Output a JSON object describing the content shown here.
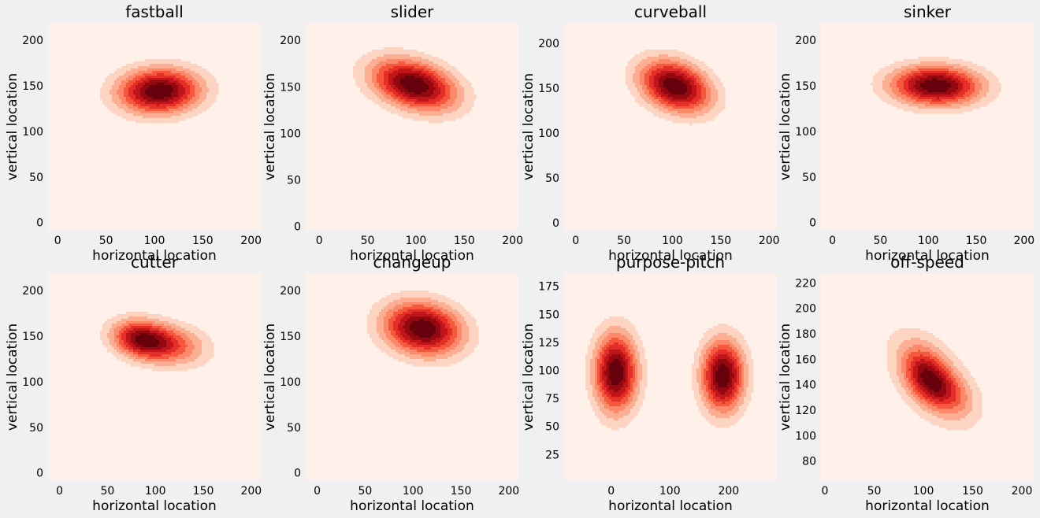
{
  "figure": {
    "background": "#f0f0f0",
    "plot_background": "#fff0e9"
  },
  "chart_data": [
    {
      "type": "contour",
      "title": "fastball",
      "xlabel": "horizontal location",
      "ylabel": "vertical location",
      "xlim": [
        -10,
        210
      ],
      "ylim": [
        -8,
        218
      ],
      "xticks": [
        0,
        50,
        100,
        150,
        200
      ],
      "yticks": [
        0,
        50,
        100,
        150,
        200
      ],
      "grid": false,
      "density": [
        {
          "x": 105,
          "y": 144,
          "sx": 29,
          "sy": 17,
          "rho": 0.05,
          "w": 1
        }
      ]
    },
    {
      "type": "contour",
      "title": "slider",
      "xlabel": "horizontal location",
      "ylabel": "vertical location",
      "xlim": [
        -14,
        206
      ],
      "ylim": [
        -4,
        218
      ],
      "xticks": [
        0,
        50,
        100,
        150,
        200
      ],
      "yticks": [
        0,
        50,
        100,
        150,
        200
      ],
      "grid": false,
      "density": [
        {
          "x": 98,
          "y": 152,
          "sx": 30,
          "sy": 19,
          "rho": -0.35,
          "w": 1
        }
      ]
    },
    {
      "type": "contour",
      "title": "curveball",
      "xlabel": "horizontal location",
      "ylabel": "vertical location",
      "xlim": [
        -12,
        208
      ],
      "ylim": [
        -8,
        222
      ],
      "xticks": [
        0,
        50,
        100,
        150,
        200
      ],
      "yticks": [
        0,
        50,
        100,
        150,
        200
      ],
      "grid": false,
      "density": [
        {
          "x": 103,
          "y": 152,
          "sx": 25,
          "sy": 20,
          "rho": -0.3,
          "w": 1
        }
      ]
    },
    {
      "type": "contour",
      "title": "sinker",
      "xlabel": "horizontal location",
      "ylabel": "vertical location",
      "xlim": [
        -12,
        210
      ],
      "ylim": [
        -8,
        218
      ],
      "xticks": [
        0,
        50,
        100,
        150,
        200
      ],
      "yticks": [
        0,
        50,
        100,
        150,
        200
      ],
      "grid": false,
      "density": [
        {
          "x": 108,
          "y": 150,
          "sx": 32,
          "sy": 15,
          "rho": -0.05,
          "w": 1
        }
      ]
    },
    {
      "type": "contour",
      "title": "cutter",
      "xlabel": "horizontal location",
      "ylabel": "vertical location",
      "xlim": [
        -12,
        210
      ],
      "ylim": [
        -8,
        218
      ],
      "xticks": [
        0,
        50,
        100,
        150,
        200
      ],
      "yticks": [
        0,
        50,
        100,
        150,
        200
      ],
      "grid": false,
      "density": [
        {
          "x": 83,
          "y": 147,
          "sx": 20,
          "sy": 14,
          "rho": -0.2,
          "w": 0.6
        },
        {
          "x": 112,
          "y": 141,
          "sx": 28,
          "sy": 16,
          "rho": -0.2,
          "w": 0.5
        }
      ]
    },
    {
      "type": "contour",
      "title": "changeup",
      "xlabel": "horizontal location",
      "ylabel": "vertical location",
      "xlim": [
        -12,
        210
      ],
      "ylim": [
        -8,
        218
      ],
      "xticks": [
        0,
        50,
        100,
        150,
        200
      ],
      "yticks": [
        0,
        50,
        100,
        150,
        200
      ],
      "grid": false,
      "density": [
        {
          "x": 110,
          "y": 158,
          "sx": 28,
          "sy": 20,
          "rho": -0.15,
          "w": 1
        }
      ]
    },
    {
      "type": "contour",
      "title": "purpose-pitch",
      "xlabel": "horizontal location",
      "ylabel": "vertical location",
      "xlim": [
        -80,
        282
      ],
      "ylim": [
        2,
        186
      ],
      "xticks": [
        0,
        100,
        200
      ],
      "yticks": [
        25,
        50,
        75,
        100,
        125,
        150,
        175
      ],
      "grid": false,
      "density": [
        {
          "x": 8,
          "y": 98,
          "sx": 25,
          "sy": 24,
          "rho": 0,
          "w": 1
        },
        {
          "x": 190,
          "y": 95,
          "sx": 25,
          "sy": 22,
          "rho": 0,
          "w": 1
        }
      ]
    },
    {
      "type": "contour",
      "title": "off-speed",
      "xlabel": "horizontal location",
      "ylabel": "vertical location",
      "xlim": [
        -4,
        212
      ],
      "ylim": [
        65,
        227
      ],
      "xticks": [
        0,
        50,
        100,
        150,
        200
      ],
      "yticks": [
        80,
        100,
        120,
        140,
        160,
        180,
        200,
        220
      ],
      "grid": false,
      "density": [
        {
          "x": 102,
          "y": 150,
          "sx": 15,
          "sy": 14,
          "rho": -0.3,
          "w": 0.8
        },
        {
          "x": 118,
          "y": 136,
          "sx": 20,
          "sy": 13,
          "rho": -0.4,
          "w": 0.8
        },
        {
          "x": 108,
          "y": 145,
          "sx": 30,
          "sy": 26,
          "rho": -0.55,
          "w": 0.6
        }
      ]
    }
  ],
  "colors": [
    "#fdd4c2",
    "#fcae92",
    "#fc8a6a",
    "#f6583e",
    "#e32f27",
    "#c0151b",
    "#94080f",
    "#67000d"
  ]
}
